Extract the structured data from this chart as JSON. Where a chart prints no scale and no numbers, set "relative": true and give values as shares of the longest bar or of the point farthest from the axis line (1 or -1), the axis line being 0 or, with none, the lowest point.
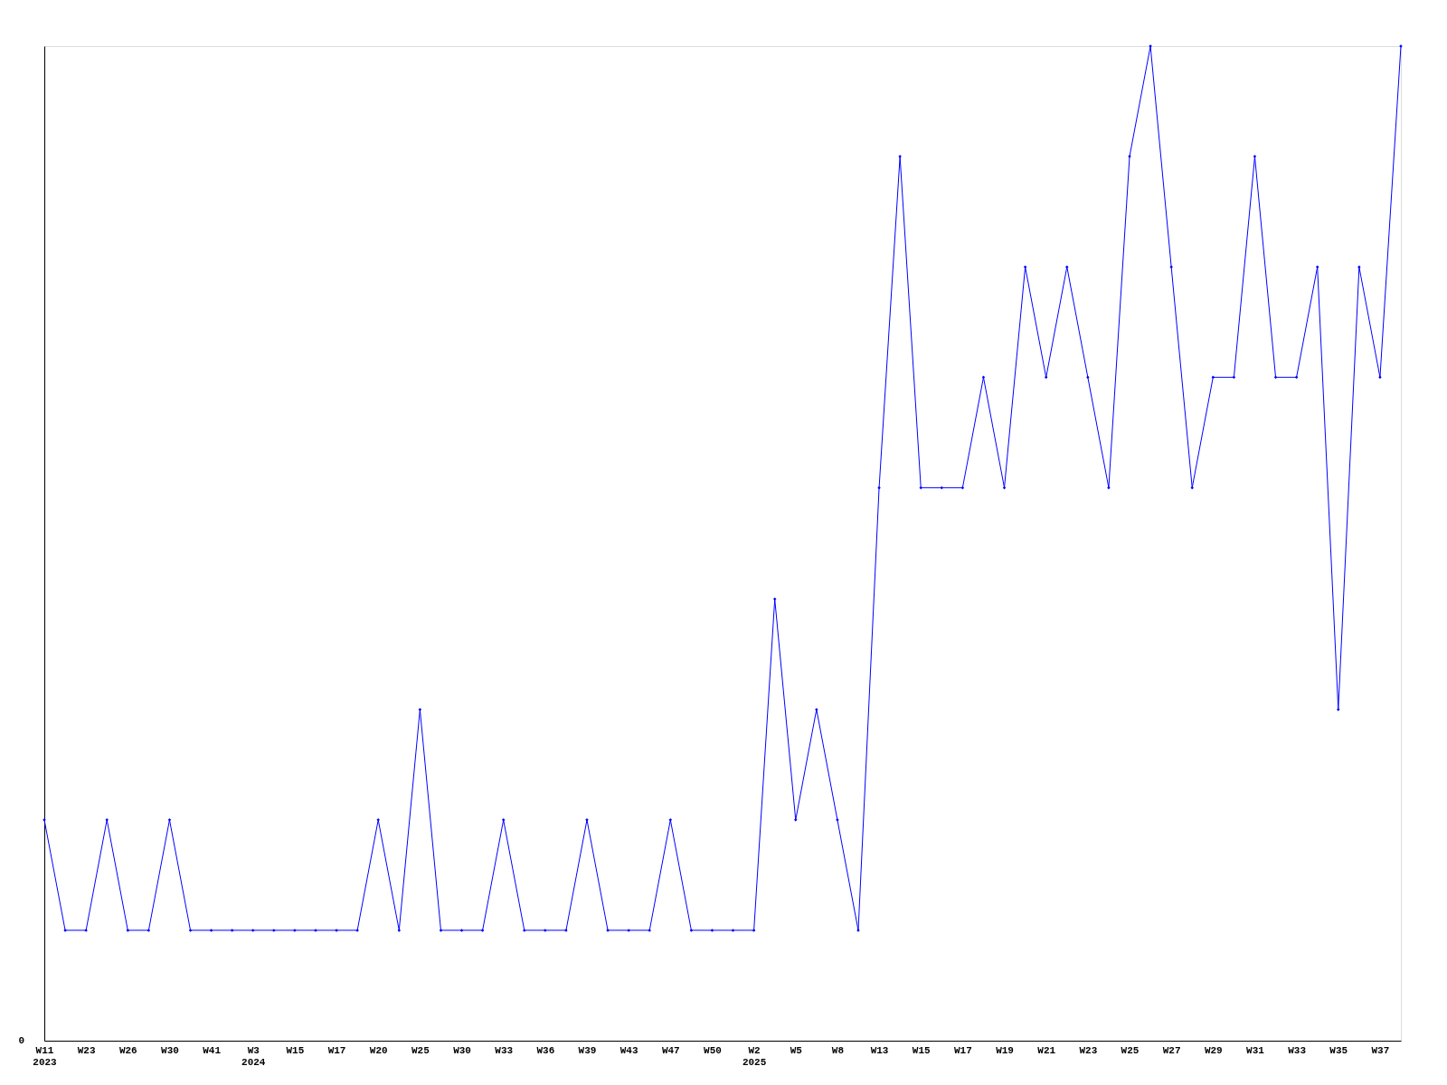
{
  "chart_data": {
    "type": "line",
    "relative": true,
    "marker": "diamond",
    "grid": false,
    "line_style": "solid",
    "categories": [
      "W11\n2023",
      null,
      "W23",
      null,
      "W26",
      null,
      "W30",
      null,
      "W41",
      null,
      "W3\n2024",
      null,
      "W15",
      null,
      "W17",
      null,
      "W20",
      null,
      "W25",
      null,
      "W30",
      null,
      "W33",
      null,
      "W36",
      null,
      "W39",
      null,
      "W43",
      null,
      "W47",
      null,
      "W50",
      null,
      "W2\n2025",
      null,
      "W5",
      null,
      "W8",
      null,
      "W13",
      null,
      "W15",
      null,
      "W17",
      null,
      "W19",
      null,
      "W21",
      null,
      "W23",
      null,
      "W25",
      null,
      "W27",
      null,
      "W29",
      null,
      "W31",
      null,
      "W33",
      null,
      "W35",
      null,
      "W37",
      null
    ],
    "series": [
      {
        "color": "#0000ff",
        "values": [
          0.222,
          0.111,
          0.111,
          0.222,
          0.111,
          0.111,
          0.222,
          0.111,
          0.111,
          0.111,
          0.111,
          0.111,
          0.111,
          0.111,
          0.111,
          0.111,
          0.222,
          0.111,
          0.333,
          0.111,
          0.111,
          0.111,
          0.222,
          0.111,
          0.111,
          0.111,
          0.222,
          0.111,
          0.111,
          0.111,
          0.222,
          0.111,
          0.111,
          0.111,
          0.111,
          0.444,
          0.222,
          0.333,
          0.222,
          0.111,
          0.556,
          0.889,
          0.556,
          0.556,
          0.556,
          0.667,
          0.556,
          0.778,
          0.667,
          0.778,
          0.667,
          0.556,
          0.889,
          1,
          0.778,
          0.556,
          0.667,
          0.667,
          0.889,
          0.667,
          0.667,
          0.778,
          0.333,
          0.778,
          0.667,
          1
        ]
      }
    ],
    "annotations": [
      "0"
    ]
  }
}
